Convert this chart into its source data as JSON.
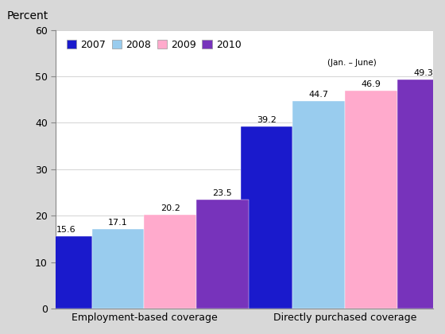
{
  "categories": [
    "Employment-based coverage",
    "Directly purchased coverage"
  ],
  "years": [
    "2007",
    "2008",
    "2009",
    "2010"
  ],
  "legend_labels": [
    "2007",
    "2008",
    "2009",
    "2010"
  ],
  "legend_sublabel": "(Jan. – June)",
  "values": {
    "Employment-based coverage": [
      15.6,
      17.1,
      20.2,
      23.5
    ],
    "Directly purchased coverage": [
      39.2,
      44.7,
      46.9,
      49.3
    ]
  },
  "bar_colors": [
    "#1a1acc",
    "#99ccee",
    "#ffaacc",
    "#7733bb"
  ],
  "ylabel": "Percent",
  "ylim": [
    0,
    60
  ],
  "yticks": [
    0,
    10,
    20,
    30,
    40,
    50,
    60
  ],
  "bar_width": 0.13,
  "outer_bg_color": "#d8d8d8",
  "inner_bg_color": "#ffffff",
  "plot_bg_color": "#ffffff",
  "annotation_fontsize": 8,
  "legend_fontsize": 9,
  "tick_fontsize": 9,
  "ylabel_fontsize": 10
}
